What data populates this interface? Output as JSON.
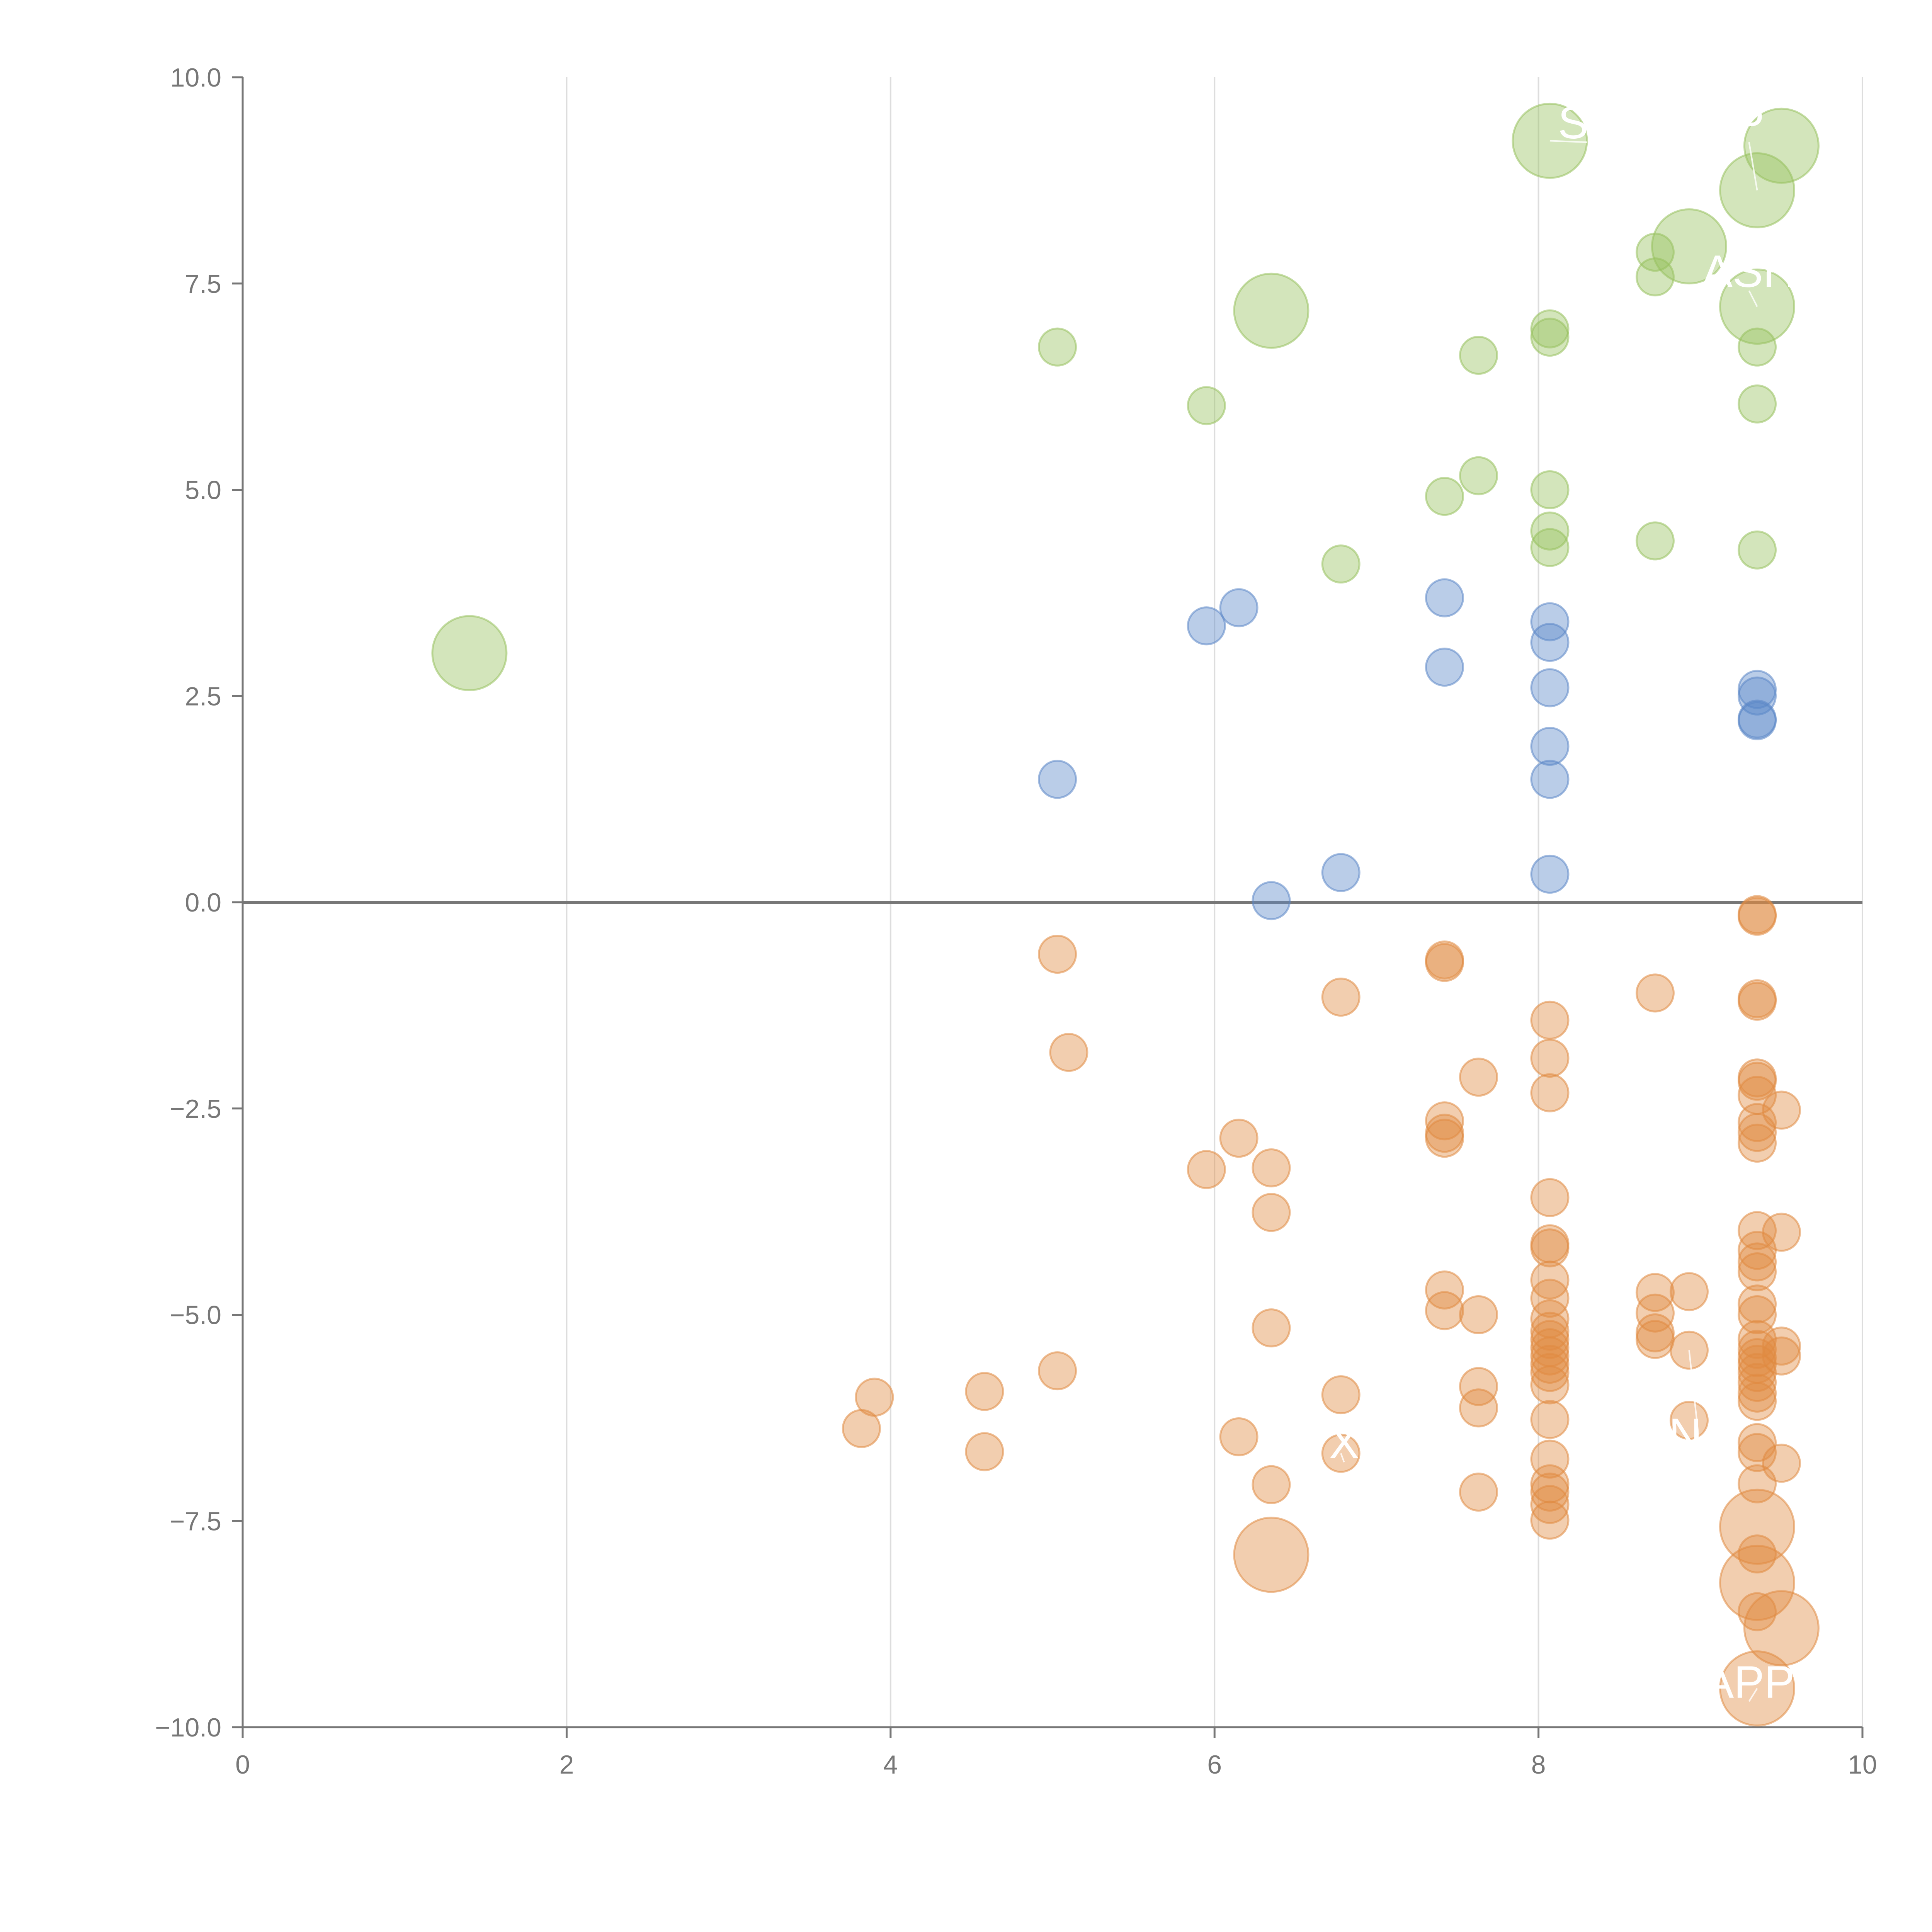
{
  "chart_data": {
    "type": "scatter",
    "title": "",
    "xlabel": "",
    "ylabel": "",
    "xlim": [
      0,
      10
    ],
    "ylim": [
      -10,
      10
    ],
    "x_ticks": [
      "0",
      "2",
      "4",
      "6",
      "8",
      "10"
    ],
    "y_ticks": [
      "10.0",
      "7.5",
      "5.0",
      "2.5",
      "0.0",
      "−2.5",
      "−5.0",
      "−7.5",
      "−10.0"
    ],
    "x_tick_values": [
      0,
      2,
      4,
      6,
      8,
      10
    ],
    "y_tick_values": [
      10,
      7.5,
      5,
      2.5,
      0,
      -2.5,
      -5,
      -7.5,
      -10
    ],
    "vertical_gridlines": true,
    "zero_line": true,
    "colors": {
      "positive_high": "#97c15e",
      "positive_low": "#5b87c7",
      "negative": "#e08a41",
      "axis": "#777777",
      "grid": "#dddddd"
    },
    "series": [
      {
        "name": "green",
        "color": "#97c15e",
        "points": [
          {
            "x": 1.4,
            "y": 3.02,
            "s": 2
          },
          {
            "x": 5.03,
            "y": 6.73,
            "s": 1
          },
          {
            "x": 5.95,
            "y": 6.02,
            "s": 1
          },
          {
            "x": 6.35,
            "y": 7.17,
            "s": 2
          },
          {
            "x": 6.78,
            "y": 4.1,
            "s": 1
          },
          {
            "x": 7.42,
            "y": 4.92,
            "s": 1
          },
          {
            "x": 7.63,
            "y": 5.17,
            "s": 1
          },
          {
            "x": 7.63,
            "y": 6.63,
            "s": 1
          },
          {
            "x": 8.07,
            "y": 6.95,
            "s": 1
          },
          {
            "x": 8.07,
            "y": 6.85,
            "s": 1
          },
          {
            "x": 8.07,
            "y": 5.0,
            "s": 1
          },
          {
            "x": 8.07,
            "y": 4.5,
            "s": 1
          },
          {
            "x": 8.07,
            "y": 4.3,
            "s": 1
          },
          {
            "x": 8.07,
            "y": 9.23,
            "s": 2
          },
          {
            "x": 8.72,
            "y": 7.88,
            "s": 1
          },
          {
            "x": 8.72,
            "y": 7.58,
            "s": 1
          },
          {
            "x": 8.72,
            "y": 4.38,
            "s": 1
          },
          {
            "x": 8.93,
            "y": 7.95,
            "s": 2
          },
          {
            "x": 9.35,
            "y": 8.63,
            "s": 2
          },
          {
            "x": 9.35,
            "y": 7.22,
            "s": 2
          },
          {
            "x": 9.35,
            "y": 6.73,
            "s": 1
          },
          {
            "x": 9.35,
            "y": 6.04,
            "s": 1
          },
          {
            "x": 9.35,
            "y": 4.27,
            "s": 1
          },
          {
            "x": 9.5,
            "y": 9.17,
            "s": 2
          }
        ]
      },
      {
        "name": "blue",
        "color": "#5b87c7",
        "points": [
          {
            "x": 5.03,
            "y": 1.49,
            "s": 1
          },
          {
            "x": 5.95,
            "y": 3.35,
            "s": 1
          },
          {
            "x": 6.15,
            "y": 3.57,
            "s": 1
          },
          {
            "x": 6.35,
            "y": 0.02,
            "s": 1
          },
          {
            "x": 6.78,
            "y": 0.36,
            "s": 1
          },
          {
            "x": 7.42,
            "y": 3.69,
            "s": 1
          },
          {
            "x": 7.42,
            "y": 2.85,
            "s": 1
          },
          {
            "x": 8.07,
            "y": 3.4,
            "s": 1
          },
          {
            "x": 8.07,
            "y": 3.15,
            "s": 1
          },
          {
            "x": 8.07,
            "y": 2.6,
            "s": 1
          },
          {
            "x": 8.07,
            "y": 1.89,
            "s": 1
          },
          {
            "x": 8.07,
            "y": 1.49,
            "s": 1
          },
          {
            "x": 8.07,
            "y": 0.34,
            "s": 1
          },
          {
            "x": 9.35,
            "y": 2.58,
            "s": 1
          },
          {
            "x": 9.35,
            "y": 2.5,
            "s": 1
          },
          {
            "x": 9.35,
            "y": 2.22,
            "s": 1
          },
          {
            "x": 9.35,
            "y": 2.2,
            "s": 1
          }
        ]
      },
      {
        "name": "orange",
        "color": "#e08a41",
        "points": [
          {
            "x": 3.82,
            "y": -6.38,
            "s": 1
          },
          {
            "x": 3.9,
            "y": -6.0,
            "s": 1
          },
          {
            "x": 4.58,
            "y": -5.93,
            "s": 1
          },
          {
            "x": 4.58,
            "y": -6.66,
            "s": 1
          },
          {
            "x": 5.03,
            "y": -0.63,
            "s": 1
          },
          {
            "x": 5.1,
            "y": -1.82,
            "s": 1
          },
          {
            "x": 5.03,
            "y": -5.68,
            "s": 1
          },
          {
            "x": 5.95,
            "y": -3.24,
            "s": 1
          },
          {
            "x": 6.15,
            "y": -2.86,
            "s": 1
          },
          {
            "x": 6.15,
            "y": -6.48,
            "s": 1
          },
          {
            "x": 6.35,
            "y": -3.22,
            "s": 1
          },
          {
            "x": 6.35,
            "y": -3.76,
            "s": 1
          },
          {
            "x": 6.35,
            "y": -5.16,
            "s": 1
          },
          {
            "x": 6.35,
            "y": -7.06,
            "s": 1
          },
          {
            "x": 6.35,
            "y": -7.91,
            "s": 2
          },
          {
            "x": 6.78,
            "y": -1.15,
            "s": 1
          },
          {
            "x": 6.78,
            "y": -5.97,
            "s": 1
          },
          {
            "x": 6.78,
            "y": -6.68,
            "s": 1
          },
          {
            "x": 7.42,
            "y": -0.7,
            "s": 1
          },
          {
            "x": 7.42,
            "y": -0.73,
            "s": 1
          },
          {
            "x": 7.42,
            "y": -2.65,
            "s": 1
          },
          {
            "x": 7.42,
            "y": -2.8,
            "s": 1
          },
          {
            "x": 7.42,
            "y": -2.86,
            "s": 1
          },
          {
            "x": 7.42,
            "y": -4.7,
            "s": 1
          },
          {
            "x": 7.42,
            "y": -4.95,
            "s": 1
          },
          {
            "x": 7.63,
            "y": -2.12,
            "s": 1
          },
          {
            "x": 7.63,
            "y": -5.0,
            "s": 1
          },
          {
            "x": 7.63,
            "y": -5.87,
            "s": 1
          },
          {
            "x": 7.63,
            "y": -6.13,
            "s": 1
          },
          {
            "x": 7.63,
            "y": -7.15,
            "s": 1
          },
          {
            "x": 8.07,
            "y": -1.43,
            "s": 1
          },
          {
            "x": 8.07,
            "y": -1.89,
            "s": 1
          },
          {
            "x": 8.07,
            "y": -2.31,
            "s": 1
          },
          {
            "x": 8.07,
            "y": -3.58,
            "s": 1
          },
          {
            "x": 8.07,
            "y": -4.14,
            "s": 1
          },
          {
            "x": 8.07,
            "y": -4.19,
            "s": 1
          },
          {
            "x": 8.07,
            "y": -4.58,
            "s": 1
          },
          {
            "x": 8.07,
            "y": -4.8,
            "s": 1
          },
          {
            "x": 8.07,
            "y": -5.05,
            "s": 1
          },
          {
            "x": 8.07,
            "y": -5.2,
            "s": 1
          },
          {
            "x": 8.07,
            "y": -5.3,
            "s": 1
          },
          {
            "x": 8.07,
            "y": -5.4,
            "s": 1
          },
          {
            "x": 8.07,
            "y": -5.5,
            "s": 1
          },
          {
            "x": 8.07,
            "y": -5.6,
            "s": 1
          },
          {
            "x": 8.07,
            "y": -5.7,
            "s": 1
          },
          {
            "x": 8.07,
            "y": -5.85,
            "s": 1
          },
          {
            "x": 8.07,
            "y": -6.27,
            "s": 1
          },
          {
            "x": 8.07,
            "y": -6.75,
            "s": 1
          },
          {
            "x": 8.07,
            "y": -7.05,
            "s": 1
          },
          {
            "x": 8.07,
            "y": -7.15,
            "s": 1
          },
          {
            "x": 8.07,
            "y": -7.3,
            "s": 1
          },
          {
            "x": 8.07,
            "y": -7.49,
            "s": 1
          },
          {
            "x": 8.72,
            "y": -1.1,
            "s": 1
          },
          {
            "x": 8.72,
            "y": -4.73,
            "s": 1
          },
          {
            "x": 8.72,
            "y": -4.98,
            "s": 1
          },
          {
            "x": 8.72,
            "y": -5.22,
            "s": 1
          },
          {
            "x": 8.72,
            "y": -5.3,
            "s": 1
          },
          {
            "x": 8.93,
            "y": -4.72,
            "s": 1
          },
          {
            "x": 8.93,
            "y": -5.43,
            "s": 1
          },
          {
            "x": 8.93,
            "y": -6.28,
            "s": 1
          },
          {
            "x": 9.35,
            "y": -0.15,
            "s": 1
          },
          {
            "x": 9.35,
            "y": -0.17,
            "s": 1
          },
          {
            "x": 9.35,
            "y": -1.17,
            "s": 1
          },
          {
            "x": 9.35,
            "y": -1.2,
            "s": 1
          },
          {
            "x": 9.35,
            "y": -2.13,
            "s": 1
          },
          {
            "x": 9.35,
            "y": -2.17,
            "s": 1
          },
          {
            "x": 9.35,
            "y": -2.34,
            "s": 1
          },
          {
            "x": 9.35,
            "y": -2.67,
            "s": 1
          },
          {
            "x": 9.35,
            "y": -2.79,
            "s": 1
          },
          {
            "x": 9.35,
            "y": -2.92,
            "s": 1
          },
          {
            "x": 9.35,
            "y": -3.98,
            "s": 1
          },
          {
            "x": 9.35,
            "y": -4.22,
            "s": 1
          },
          {
            "x": 9.35,
            "y": -4.36,
            "s": 1
          },
          {
            "x": 9.35,
            "y": -4.48,
            "s": 1
          },
          {
            "x": 9.35,
            "y": -4.87,
            "s": 1
          },
          {
            "x": 9.35,
            "y": -5.0,
            "s": 1
          },
          {
            "x": 9.35,
            "y": -5.3,
            "s": 1
          },
          {
            "x": 9.35,
            "y": -5.42,
            "s": 1
          },
          {
            "x": 9.35,
            "y": -5.52,
            "s": 1
          },
          {
            "x": 9.35,
            "y": -5.6,
            "s": 1
          },
          {
            "x": 9.35,
            "y": -5.7,
            "s": 1
          },
          {
            "x": 9.35,
            "y": -5.82,
            "s": 1
          },
          {
            "x": 9.35,
            "y": -5.95,
            "s": 1
          },
          {
            "x": 9.35,
            "y": -6.05,
            "s": 1
          },
          {
            "x": 9.35,
            "y": -6.55,
            "s": 1
          },
          {
            "x": 9.35,
            "y": -6.67,
            "s": 1
          },
          {
            "x": 9.35,
            "y": -7.05,
            "s": 1
          },
          {
            "x": 9.35,
            "y": -7.57,
            "s": 2
          },
          {
            "x": 9.35,
            "y": -7.9,
            "s": 1
          },
          {
            "x": 9.35,
            "y": -8.25,
            "s": 2
          },
          {
            "x": 9.35,
            "y": -8.6,
            "s": 1
          },
          {
            "x": 9.35,
            "y": -9.53,
            "s": 2
          },
          {
            "x": 9.5,
            "y": -2.52,
            "s": 1
          },
          {
            "x": 9.5,
            "y": -4.0,
            "s": 1
          },
          {
            "x": 9.5,
            "y": -5.38,
            "s": 1
          },
          {
            "x": 9.5,
            "y": -5.5,
            "s": 1
          },
          {
            "x": 9.5,
            "y": -6.8,
            "s": 1
          },
          {
            "x": 9.5,
            "y": -8.8,
            "s": 2
          }
        ]
      }
    ],
    "annotations": [
      {
        "text": "SF",
        "x": 8.3,
        "y": 9.4,
        "px": 8.07,
        "py": 9.23
      },
      {
        "text": "P",
        "x": 9.3,
        "y": 9.4,
        "px": 9.35,
        "py": 8.63
      },
      {
        "text": "ASH",
        "x": 9.3,
        "y": 7.6,
        "px": 9.35,
        "py": 7.22
      },
      {
        "text": "NA",
        "x": 9.0,
        "y": -6.5,
        "px": 8.93,
        "py": -5.43
      },
      {
        "text": "X",
        "x": 6.8,
        "y": -6.6,
        "px": 6.78,
        "py": -6.68
      },
      {
        "text": "APP",
        "x": 9.3,
        "y": -9.5,
        "px": 9.35,
        "py": -9.53
      }
    ]
  }
}
